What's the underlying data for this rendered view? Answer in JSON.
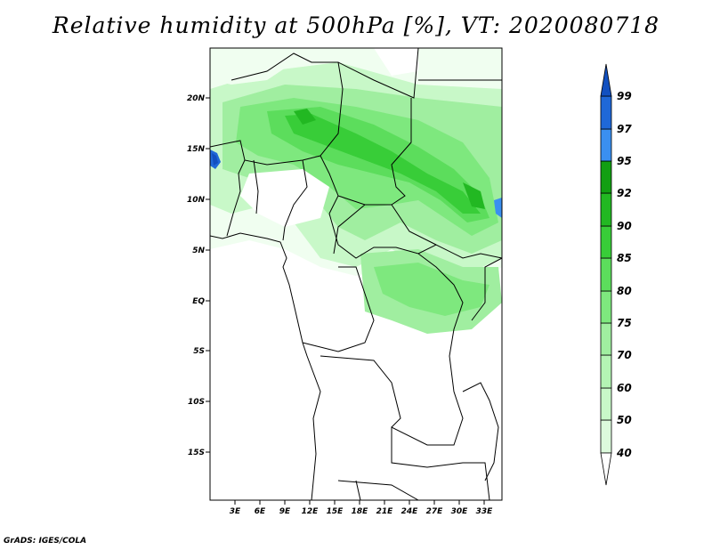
{
  "title": "Relative humidity at 500hPa [%], VT: 2020080718",
  "credit": "GrADS: IGES/COLA",
  "map": {
    "lat_labels": [
      "20N",
      "15N",
      "10N",
      "5N",
      "EQ",
      "5S",
      "10S",
      "15S"
    ],
    "lon_labels": [
      "3E",
      "6E",
      "9E",
      "12E",
      "15E",
      "18E",
      "21E",
      "24E",
      "27E",
      "30E",
      "33E"
    ]
  },
  "colorbar": {
    "levels": [
      "40",
      "50",
      "60",
      "70",
      "75",
      "80",
      "85",
      "90",
      "92",
      "95",
      "97",
      "99"
    ],
    "colors": [
      "#f0fef0",
      "#dcfadc",
      "#c8f8c8",
      "#b4f4b4",
      "#a0eea0",
      "#7ee87e",
      "#5cdd5c",
      "#38cd38",
      "#22b822",
      "#129f12",
      "#3a8ff0",
      "#1f68d8",
      "#1250c0"
    ],
    "under_color": "#ffffff",
    "over_color": "#1250c0"
  }
}
